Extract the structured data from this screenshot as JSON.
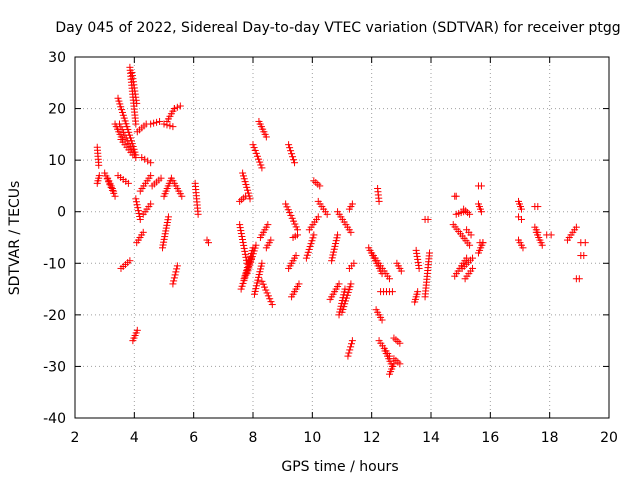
{
  "chart_data": {
    "type": "scatter",
    "title": "Day 045 of 2022, Sidereal Day-to-day VTEC variation (SDTVAR) for receiver ptgg",
    "xlabel": "GPS time / hours",
    "ylabel": "SDTVAR / TECUs",
    "xlim": [
      2,
      20
    ],
    "ylim": [
      -40,
      30
    ],
    "xticks": [
      2,
      4,
      6,
      8,
      10,
      12,
      14,
      16,
      18,
      20
    ],
    "yticks": [
      -40,
      -30,
      -20,
      -10,
      0,
      10,
      20,
      30
    ],
    "grid": true,
    "marker": "plus",
    "color": "#ff0000",
    "tracks": [
      {
        "x": [
          2.75,
          2.8
        ],
        "y": [
          12.5,
          9
        ]
      },
      {
        "x": [
          2.75,
          2.82
        ],
        "y": [
          5.5,
          7
        ]
      },
      {
        "x": [
          3.0,
          3.35
        ],
        "y": [
          7.5,
          3.0
        ]
      },
      {
        "x": [
          3.1,
          3.3
        ],
        "y": [
          6.5,
          4
        ]
      },
      {
        "x": [
          3.45,
          3.8
        ],
        "y": [
          7,
          5.5
        ]
      },
      {
        "x": [
          3.45,
          4.05
        ],
        "y": [
          22,
          11
        ]
      },
      {
        "x": [
          3.5,
          4.05
        ],
        "y": [
          17,
          10.5
        ]
      },
      {
        "x": [
          3.55,
          3.95
        ],
        "y": [
          14,
          11
        ]
      },
      {
        "x": [
          3.35,
          3.6
        ],
        "y": [
          17,
          14
        ]
      },
      {
        "x": [
          3.85,
          4.05
        ],
        "y": [
          28,
          17
        ]
      },
      {
        "x": [
          3.92,
          4.08
        ],
        "y": [
          27,
          21
        ]
      },
      {
        "x": [
          3.55,
          3.85
        ],
        "y": [
          -11,
          -9.5
        ]
      },
      {
        "x": [
          3.95,
          4.1
        ],
        "y": [
          -25,
          -23
        ]
      },
      {
        "x": [
          4.08,
          4.3
        ],
        "y": [
          -6,
          -4
        ]
      },
      {
        "x": [
          4.05,
          4.2
        ],
        "y": [
          2.5,
          -1.5
        ]
      },
      {
        "x": [
          4.25,
          4.55
        ],
        "y": [
          10.5,
          9.5
        ]
      },
      {
        "x": [
          4.2,
          4.55
        ],
        "y": [
          4,
          7
        ]
      },
      {
        "x": [
          4.3,
          4.55
        ],
        "y": [
          -0.5,
          1.5
        ]
      },
      {
        "x": [
          4.1,
          4.4
        ],
        "y": [
          15.5,
          17
        ]
      },
      {
        "x": [
          4.55,
          4.85
        ],
        "y": [
          17,
          17.5
        ]
      },
      {
        "x": [
          4.6,
          4.9
        ],
        "y": [
          5,
          6.5
        ]
      },
      {
        "x": [
          4.95,
          5.15
        ],
        "y": [
          -7,
          -1
        ]
      },
      {
        "x": [
          5.0,
          5.25
        ],
        "y": [
          3,
          6.5
        ]
      },
      {
        "x": [
          5.0,
          5.3
        ],
        "y": [
          17,
          16.5
        ]
      },
      {
        "x": [
          5.1,
          5.35
        ],
        "y": [
          17.5,
          20
        ]
      },
      {
        "x": [
          5.3,
          5.45
        ],
        "y": [
          -14,
          -10.5
        ]
      },
      {
        "x": [
          5.3,
          5.6
        ],
        "y": [
          6,
          3
        ]
      },
      {
        "x": [
          5.35,
          5.55
        ],
        "y": [
          20,
          20.5
        ]
      },
      {
        "x": [
          6.05,
          6.15
        ],
        "y": [
          5.5,
          -0.5
        ]
      },
      {
        "x": [
          6.45,
          6.5
        ],
        "y": [
          -5.5,
          -6
        ]
      },
      {
        "x": [
          7.55,
          7.8
        ],
        "y": [
          -2.5,
          -10
        ]
      },
      {
        "x": [
          7.55,
          7.75
        ],
        "y": [
          2,
          3
        ]
      },
      {
        "x": [
          7.6,
          7.95
        ],
        "y": [
          -15,
          -9
        ]
      },
      {
        "x": [
          7.65,
          7.9
        ],
        "y": [
          7.5,
          2.5
        ]
      },
      {
        "x": [
          7.7,
          8.0
        ],
        "y": [
          -13,
          -7
        ]
      },
      {
        "x": [
          7.8,
          8.1
        ],
        "y": [
          -12,
          -6.5
        ]
      },
      {
        "x": [
          8.0,
          8.3
        ],
        "y": [
          13,
          8.5
        ]
      },
      {
        "x": [
          8.05,
          8.3
        ],
        "y": [
          -16,
          -10
        ]
      },
      {
        "x": [
          8.2,
          8.45
        ],
        "y": [
          17.5,
          14.5
        ]
      },
      {
        "x": [
          8.25,
          8.5
        ],
        "y": [
          -5,
          -2.5
        ]
      },
      {
        "x": [
          8.3,
          8.65
        ],
        "y": [
          -13.5,
          -18
        ]
      },
      {
        "x": [
          8.45,
          8.6
        ],
        "y": [
          -7,
          -5.5
        ]
      },
      {
        "x": [
          9.1,
          9.5
        ],
        "y": [
          1.5,
          -3.5
        ]
      },
      {
        "x": [
          9.2,
          9.4
        ],
        "y": [
          13,
          9.5
        ]
      },
      {
        "x": [
          9.2,
          9.45
        ],
        "y": [
          -11,
          -8.5
        ]
      },
      {
        "x": [
          9.3,
          9.55
        ],
        "y": [
          -16.5,
          -14
        ]
      },
      {
        "x": [
          9.35,
          9.5
        ],
        "y": [
          -5,
          -4.5
        ]
      },
      {
        "x": [
          9.8,
          10.05
        ],
        "y": [
          -9,
          -4.5
        ]
      },
      {
        "x": [
          9.9,
          10.2
        ],
        "y": [
          -3.5,
          -1
        ]
      },
      {
        "x": [
          10.05,
          10.25
        ],
        "y": [
          6,
          5
        ]
      },
      {
        "x": [
          10.2,
          10.5
        ],
        "y": [
          2,
          -0.5
        ]
      },
      {
        "x": [
          10.6,
          10.9
        ],
        "y": [
          -17,
          -14
        ]
      },
      {
        "x": [
          10.65,
          10.85
        ],
        "y": [
          -9.5,
          -4.5
        ]
      },
      {
        "x": [
          10.9,
          11.1
        ],
        "y": [
          -20,
          -15
        ]
      },
      {
        "x": [
          10.85,
          11.3
        ],
        "y": [
          0,
          -4
        ]
      },
      {
        "x": [
          11.0,
          11.3
        ],
        "y": [
          -19.5,
          -14
        ]
      },
      {
        "x": [
          11.2,
          11.35
        ],
        "y": [
          -28,
          -25
        ]
      },
      {
        "x": [
          11.25,
          11.4
        ],
        "y": [
          -11,
          -10
        ]
      },
      {
        "x": [
          11.25,
          11.35
        ],
        "y": [
          0.5,
          1.5
        ]
      },
      {
        "x": [
          11.9,
          12.35
        ],
        "y": [
          -7,
          -12
        ]
      },
      {
        "x": [
          12.0,
          12.6
        ],
        "y": [
          -8,
          -13
        ]
      },
      {
        "x": [
          12.15,
          12.35
        ],
        "y": [
          -19,
          -21
        ]
      },
      {
        "x": [
          12.2,
          12.25
        ],
        "y": [
          4.5,
          2
        ]
      },
      {
        "x": [
          12.25,
          12.6
        ],
        "y": [
          -25,
          -28
        ]
      },
      {
        "x": [
          12.3,
          12.7
        ],
        "y": [
          -15.5,
          -15.5
        ]
      },
      {
        "x": [
          12.45,
          12.7
        ],
        "y": [
          -27,
          -30
        ]
      },
      {
        "x": [
          12.6,
          12.75
        ],
        "y": [
          -31.5,
          -29.5
        ]
      },
      {
        "x": [
          12.75,
          12.95
        ],
        "y": [
          -24.5,
          -25.5
        ]
      },
      {
        "x": [
          12.85,
          13.0
        ],
        "y": [
          -10,
          -11.5
        ]
      },
      {
        "x": [
          12.75,
          12.95
        ],
        "y": [
          -28.5,
          -29.5
        ]
      },
      {
        "x": [
          13.45,
          13.55
        ],
        "y": [
          -17.5,
          -15.5
        ]
      },
      {
        "x": [
          13.5,
          13.6
        ],
        "y": [
          -7.5,
          -11
        ]
      },
      {
        "x": [
          13.8,
          13.95
        ],
        "y": [
          -16.5,
          -8
        ]
      },
      {
        "x": [
          13.8,
          13.9
        ],
        "y": [
          -1.5,
          -1.5
        ]
      },
      {
        "x": [
          14.75,
          15.3
        ],
        "y": [
          -2.5,
          -6.5
        ]
      },
      {
        "x": [
          14.8,
          15.2
        ],
        "y": [
          -12.5,
          -9
        ]
      },
      {
        "x": [
          14.85,
          15.1
        ],
        "y": [
          -0.5,
          0
        ]
      },
      {
        "x": [
          15.05,
          15.4
        ],
        "y": [
          -11,
          -9
        ]
      },
      {
        "x": [
          15.15,
          15.4
        ],
        "y": [
          -13,
          -11
        ]
      },
      {
        "x": [
          15.2,
          15.35
        ],
        "y": [
          -3.5,
          -4.5
        ]
      },
      {
        "x": [
          15.1,
          15.3
        ],
        "y": [
          0.5,
          -0.5
        ]
      },
      {
        "x": [
          15.6,
          15.75
        ],
        "y": [
          -8,
          -6
        ]
      },
      {
        "x": [
          15.6,
          15.7
        ],
        "y": [
          1.5,
          0
        ]
      },
      {
        "x": [
          15.6,
          15.7
        ],
        "y": [
          5,
          5
        ]
      },
      {
        "x": [
          15.65,
          15.75
        ],
        "y": [
          -6,
          -6
        ]
      },
      {
        "x": [
          14.8,
          14.85
        ],
        "y": [
          3,
          3
        ]
      },
      {
        "x": [
          16.95,
          17.1
        ],
        "y": [
          -5.5,
          -7
        ]
      },
      {
        "x": [
          16.95,
          17.05
        ],
        "y": [
          2,
          0.5
        ]
      },
      {
        "x": [
          16.95,
          17.05
        ],
        "y": [
          -1,
          -1.5
        ]
      },
      {
        "x": [
          17.5,
          17.6
        ],
        "y": [
          -3,
          -4
        ]
      },
      {
        "x": [
          17.5,
          17.6
        ],
        "y": [
          1,
          1
        ]
      },
      {
        "x": [
          17.55,
          17.75
        ],
        "y": [
          -4,
          -6.5
        ]
      },
      {
        "x": [
          17.9,
          18.05
        ],
        "y": [
          -4.5,
          -4.5
        ]
      },
      {
        "x": [
          18.6,
          18.9
        ],
        "y": [
          -5.5,
          -3
        ]
      },
      {
        "x": [
          18.9,
          19.0
        ],
        "y": [
          -13,
          -13
        ]
      },
      {
        "x": [
          19.05,
          19.15
        ],
        "y": [
          -8.5,
          -8.5
        ]
      },
      {
        "x": [
          19.05,
          19.2
        ],
        "y": [
          -6,
          -6
        ]
      }
    ]
  }
}
